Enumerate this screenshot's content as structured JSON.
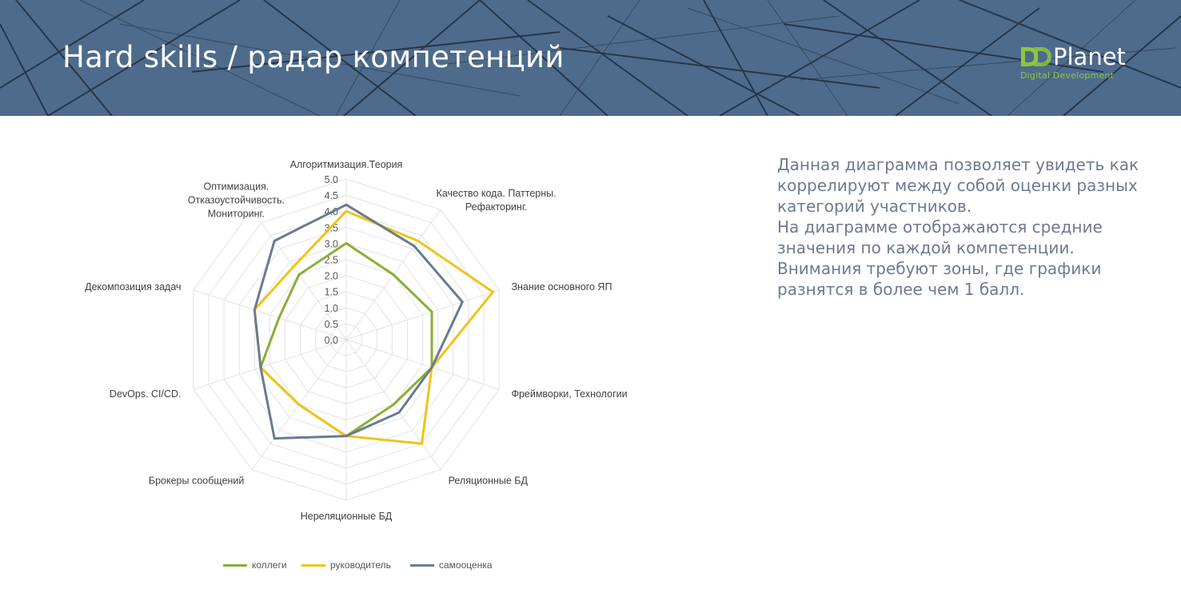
{
  "header": {
    "title": "Hard skills / радар компетенций",
    "logo": {
      "mark": "DD",
      "name": "Planet",
      "tagline": "Digital Development",
      "mark_color": "#8fc63f"
    },
    "background_color": "#4e6b8c"
  },
  "description": {
    "paragraphs": [
      "Данная диаграмма позволяет увидеть как коррелируют между собой оценки разных категорий участников.",
      "На диаграмме отображаются средние значения по каждой компетенции.",
      "Внимания требуют зоны, где графики разнятся в более чем 1 балл."
    ]
  },
  "chart_data": {
    "type": "radar",
    "categories": [
      "Алгоритмизация.Теория",
      "Качество кода. Паттерны. Рефакторинг.",
      "Знание основного ЯП",
      "Фреймворки, Технологии",
      "Реляционные БД",
      "Нереляционные БД",
      "Брокеры сообщений",
      "DevOps. CI/CD.",
      "Декомпозиция задач",
      "Оптимизация. Отказоустойчивость. Мониторинг."
    ],
    "rlim": [
      0,
      5
    ],
    "tick_step": 0.5,
    "tick_labels": [
      "0.0",
      "0.5",
      "1.0",
      "1.5",
      "2.0",
      "2.5",
      "3.0",
      "3.5",
      "4.0",
      "4.5",
      "5.0"
    ],
    "grid": true,
    "legend_position": "bottom",
    "series": [
      {
        "name": "коллеги",
        "color": "#8aaf35",
        "values": [
          3.0,
          2.5,
          2.8,
          2.8,
          2.5,
          3.0,
          2.5,
          2.8,
          2.2,
          2.5
        ]
      },
      {
        "name": "руководитель",
        "color": "#f0c419",
        "values": [
          4.0,
          3.8,
          4.8,
          2.8,
          4.0,
          3.0,
          2.5,
          2.8,
          3.0,
          2.8
        ]
      },
      {
        "name": "самооценка",
        "color": "#6b7b8e",
        "values": [
          4.2,
          3.6,
          3.8,
          2.8,
          2.8,
          3.0,
          3.8,
          2.8,
          3.0,
          3.8
        ]
      }
    ]
  }
}
